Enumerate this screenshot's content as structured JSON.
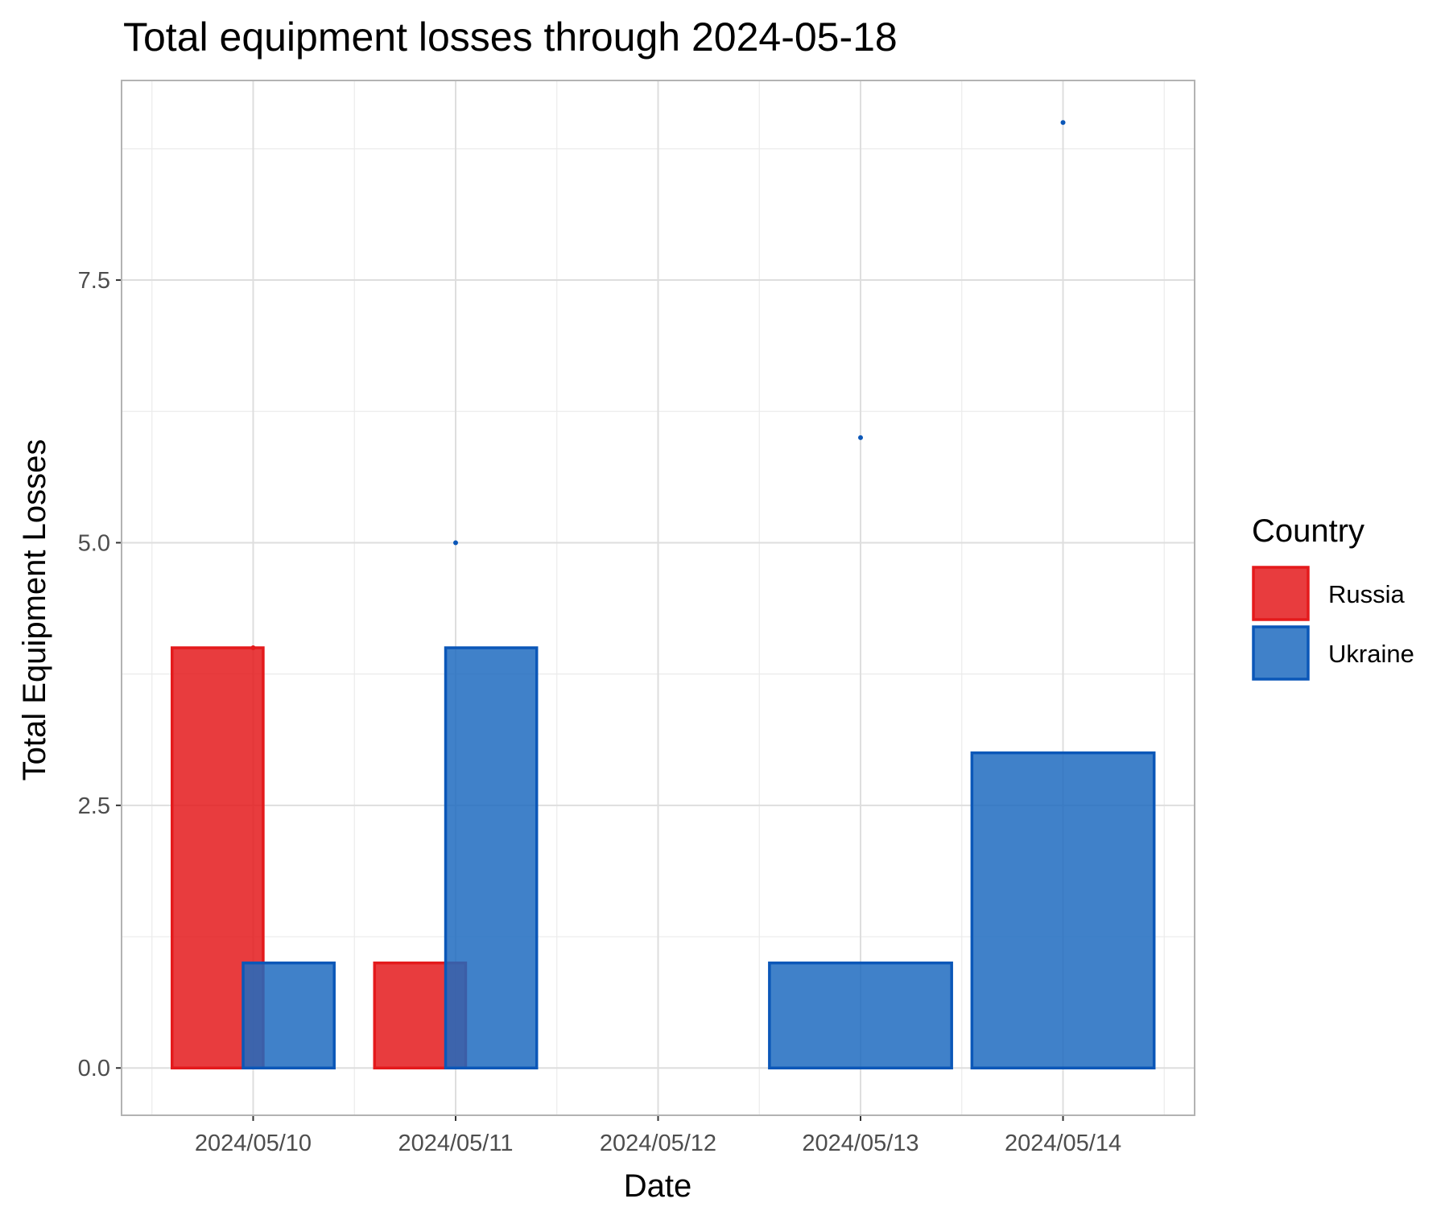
{
  "chart_data": {
    "type": "bar",
    "title": "Total equipment losses through 2024-05-18",
    "xlabel": "Date",
    "ylabel": "Total Equipment Losses",
    "categories": [
      "2024/05/10",
      "2024/05/11",
      "2024/05/12",
      "2024/05/13",
      "2024/05/14"
    ],
    "ylim": [
      -0.45,
      9.4
    ],
    "yticks": [
      0.0,
      2.5,
      5.0,
      7.5
    ],
    "ytick_labels": [
      "0.0",
      "2.5",
      "5.0",
      "7.5"
    ],
    "grid": true,
    "legend": {
      "title": "Country",
      "position": "right",
      "entries": [
        {
          "label": "Russia",
          "fill": "#e41a1c",
          "stroke": "#e41a1c"
        },
        {
          "label": "Ukraine",
          "fill": "#1f6bbf",
          "stroke": "#0b57b8"
        }
      ]
    },
    "bars": [
      {
        "country": "Russia",
        "start": "2024/05/10",
        "end": "2024/05/10",
        "value": 4
      },
      {
        "country": "Ukraine",
        "start": "2024/05/10",
        "end": "2024/05/10",
        "value": 1
      },
      {
        "country": "Russia",
        "start": "2024/05/11",
        "end": "2024/05/11",
        "value": 1
      },
      {
        "country": "Ukraine",
        "start": "2024/05/11",
        "end": "2024/05/11",
        "value": 4
      },
      {
        "country": "Ukraine",
        "start": "2024/05/13",
        "end": "2024/05/13",
        "value": 1
      },
      {
        "country": "Ukraine",
        "start": "2024/05/14",
        "end": "2024/05/14",
        "value": 3
      }
    ],
    "points": [
      {
        "x": "2024/05/10",
        "y": 4,
        "country": "Russia"
      },
      {
        "x": "2024/05/11",
        "y": 5,
        "country": "Ukraine"
      },
      {
        "x": "2024/05/13",
        "y": 6,
        "country": "Ukraine"
      },
      {
        "x": "2024/05/14",
        "y": 9,
        "country": "Ukraine"
      }
    ]
  }
}
